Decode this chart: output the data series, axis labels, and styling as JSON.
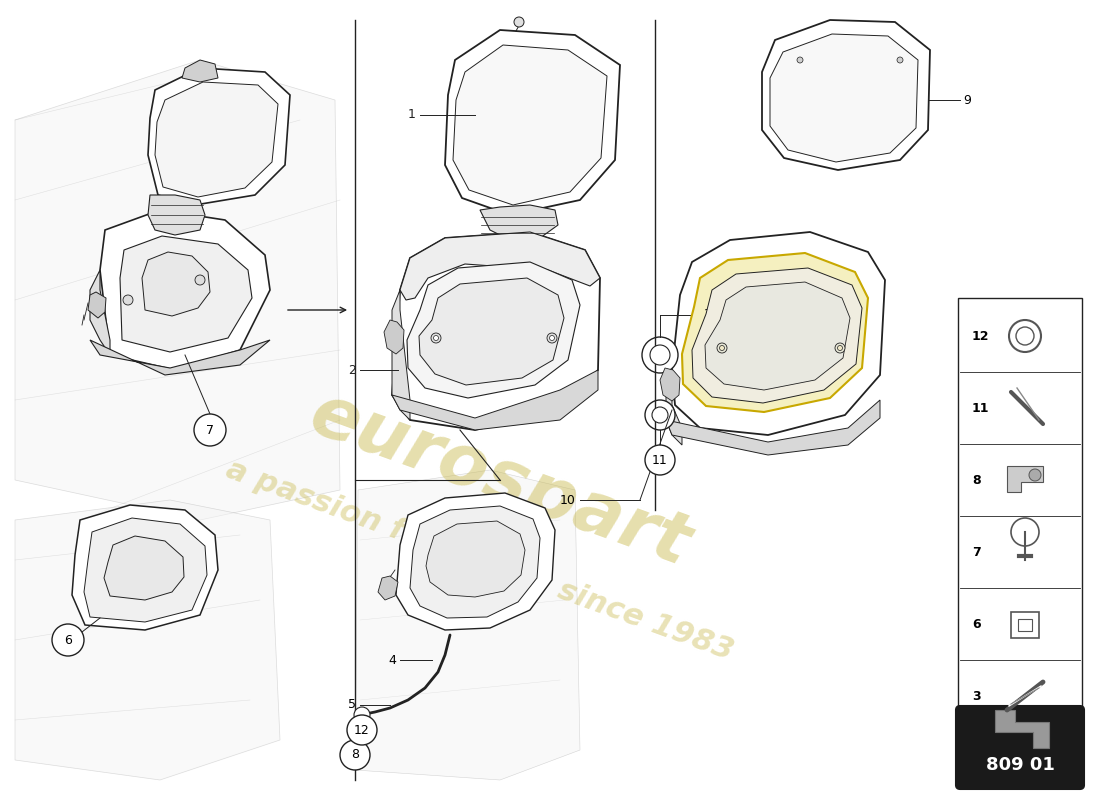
{
  "bg_color": "#ffffff",
  "watermark_color": "#c8b84a",
  "part_number_box": "809 01",
  "line_color": "#222222",
  "light_line": "#aaaaaa",
  "body_line": "#bbbbbb",
  "parts_list": [
    {
      "num": 12
    },
    {
      "num": 11
    },
    {
      "num": 8
    },
    {
      "num": 7
    },
    {
      "num": 6
    },
    {
      "num": 3
    }
  ]
}
